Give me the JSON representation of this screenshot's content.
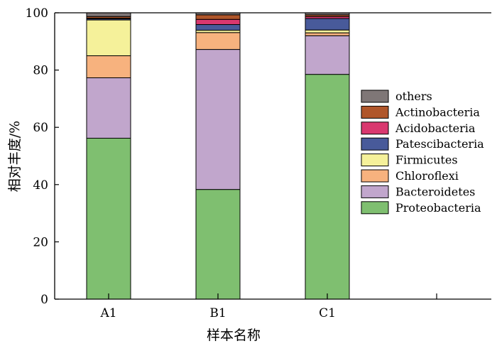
{
  "chart_data": {
    "type": "bar",
    "stacked": true,
    "categories": [
      "A1",
      "B1",
      "C1"
    ],
    "xlabel": "样本名称",
    "ylabel": "相对丰度/%",
    "ylim": [
      0,
      100
    ],
    "yticks": [
      0,
      20,
      40,
      60,
      80,
      100
    ],
    "legend_position": "right",
    "grid": false,
    "series": [
      {
        "name": "Proteobacteria",
        "color": "#7fbf70",
        "values": [
          56.2,
          38.3,
          78.5
        ]
      },
      {
        "name": "Bacteroidetes",
        "color": "#c1a6cc",
        "values": [
          21.1,
          48.9,
          13.5
        ]
      },
      {
        "name": "Chloroflexi",
        "color": "#f7b27e",
        "values": [
          7.7,
          5.9,
          1.0
        ]
      },
      {
        "name": "Firmicutes",
        "color": "#f5f19a",
        "values": [
          12.5,
          0.8,
          1.0
        ]
      },
      {
        "name": "Patescibacteria",
        "color": "#485a9a",
        "values": [
          0.4,
          2.0,
          4.0
        ]
      },
      {
        "name": "Acidobacteria",
        "color": "#d9386f",
        "values": [
          0.2,
          1.8,
          0.7
        ]
      },
      {
        "name": "Actinobacteria",
        "color": "#b0562a",
        "values": [
          0.6,
          1.6,
          0.6
        ]
      },
      {
        "name": "others",
        "color": "#7f7777",
        "values": [
          1.3,
          0.7,
          0.7
        ]
      }
    ]
  }
}
